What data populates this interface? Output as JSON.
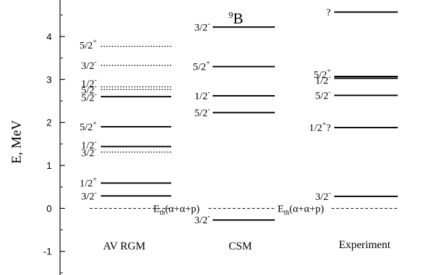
{
  "chart_data": {
    "type": "level-scheme",
    "ylabel": "E, MeV",
    "ylim": [
      -1.55,
      4.85
    ],
    "yticks": [
      -1,
      0,
      1,
      2,
      3,
      4
    ],
    "nucleus": {
      "mass": "9",
      "symbol": "B"
    },
    "threshold": {
      "energy": 0,
      "label": "E",
      "sub": "th",
      "rest": "(α+α+p)"
    },
    "columns": [
      {
        "name": "AV RGM",
        "levels": [
          {
            "energy": 3.77,
            "j": "5/2",
            "parity": "+",
            "style": "dotted"
          },
          {
            "energy": 3.33,
            "j": "3/2",
            "parity": "-",
            "style": "dotted"
          },
          {
            "energy": 2.83,
            "j": "1/2",
            "parity": "-",
            "style": "dotted"
          },
          {
            "energy": 2.77,
            "j": "5/2",
            "parity": "-",
            "style": "dotted"
          },
          {
            "energy": 2.6,
            "j": "5/2",
            "parity": "-",
            "style": "solid"
          },
          {
            "energy": 1.9,
            "j": "5/2",
            "parity": "+",
            "style": "solid"
          },
          {
            "energy": 1.44,
            "j": "1/2",
            "parity": "-",
            "style": "solid"
          },
          {
            "energy": 1.31,
            "j": "3/2",
            "parity": "-",
            "style": "dotted"
          },
          {
            "energy": 0.59,
            "j": "1/2",
            "parity": "+",
            "style": "solid"
          },
          {
            "energy": 0.29,
            "j": "3/2",
            "parity": "-",
            "style": "solid"
          }
        ]
      },
      {
        "name": "CSM",
        "levels": [
          {
            "energy": 4.22,
            "j": "3/2",
            "parity": "-",
            "style": "solid"
          },
          {
            "energy": 3.3,
            "j": "5/2",
            "parity": "+",
            "style": "solid"
          },
          {
            "energy": 2.62,
            "j": "1/2",
            "parity": "-",
            "style": "solid"
          },
          {
            "energy": 2.23,
            "j": "5/2",
            "parity": "-",
            "style": "solid"
          },
          {
            "energy": -0.27,
            "j": "3/2",
            "parity": "-",
            "style": "solid"
          }
        ]
      },
      {
        "name": "Experiment",
        "levels": [
          {
            "energy": 4.57,
            "j": "?",
            "parity": "",
            "style": "solid"
          },
          {
            "energy": 3.07,
            "j": "5/2",
            "parity": "+",
            "style": "solid"
          },
          {
            "energy": 3.03,
            "j": "1/2",
            "parity": "-",
            "style": "solid"
          },
          {
            "energy": 2.63,
            "j": "5/2",
            "parity": "-",
            "style": "solid"
          },
          {
            "energy": 1.88,
            "j": "1/2",
            "parity": "+",
            "style": "solid",
            "suffix": "?"
          },
          {
            "energy": 0.28,
            "j": "3/2",
            "parity": "-",
            "style": "solid"
          }
        ]
      }
    ]
  }
}
